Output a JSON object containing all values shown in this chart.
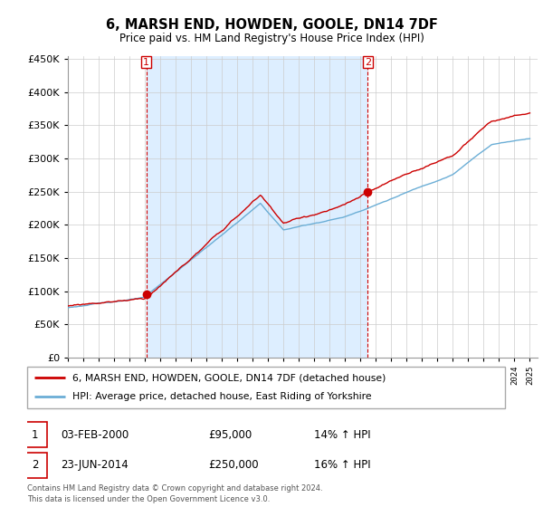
{
  "title": "6, MARSH END, HOWDEN, GOOLE, DN14 7DF",
  "subtitle": "Price paid vs. HM Land Registry's House Price Index (HPI)",
  "legend_line1": "6, MARSH END, HOWDEN, GOOLE, DN14 7DF (detached house)",
  "legend_line2": "HPI: Average price, detached house, East Riding of Yorkshire",
  "sale1_date": "03-FEB-2000",
  "sale1_price": "£95,000",
  "sale1_hpi": "14% ↑ HPI",
  "sale2_date": "23-JUN-2014",
  "sale2_price": "£250,000",
  "sale2_hpi": "16% ↑ HPI",
  "footer": "Contains HM Land Registry data © Crown copyright and database right 2024.\nThis data is licensed under the Open Government Licence v3.0.",
  "hpi_color": "#6baed6",
  "sale_color": "#cc0000",
  "dashed_line_color": "#cc0000",
  "shade_color": "#ddeeff",
  "yticks": [
    0,
    50000,
    100000,
    150000,
    200000,
    250000,
    300000,
    350000,
    400000,
    450000
  ],
  "sale1_year": 2000.09,
  "sale1_value": 95000,
  "sale2_year": 2014.48,
  "sale2_value": 250000
}
